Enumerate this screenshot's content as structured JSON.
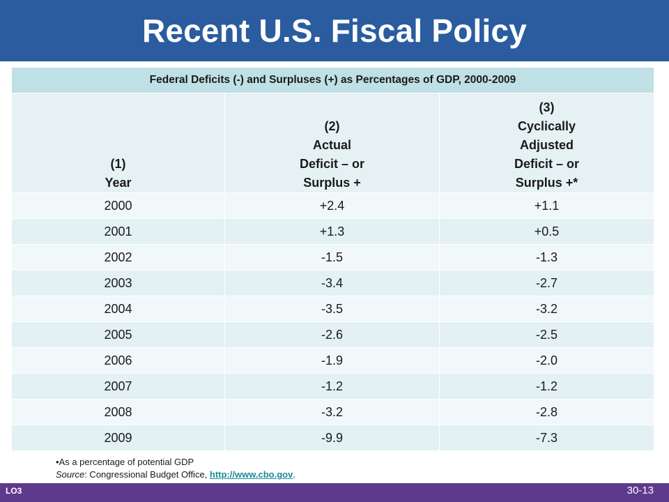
{
  "title": "Recent U.S. Fiscal Policy",
  "table": {
    "caption": "Federal Deficits (-) and Surpluses (+) as Percentages of GDP, 2000-2009",
    "headers": [
      [
        "(1)",
        "Year"
      ],
      [
        "(2)",
        "Actual",
        "Deficit – or",
        "Surplus +"
      ],
      [
        "(3)",
        "Cyclically",
        "Adjusted",
        "Deficit – or",
        "Surplus +*"
      ]
    ],
    "rows": [
      [
        "2000",
        "+2.4",
        "+1.1"
      ],
      [
        "2001",
        "+1.3",
        "+0.5"
      ],
      [
        "2002",
        "-1.5",
        "-1.3"
      ],
      [
        "2003",
        "-3.4",
        "-2.7"
      ],
      [
        "2004",
        "-3.5",
        "-3.2"
      ],
      [
        "2005",
        "-2.6",
        "-2.5"
      ],
      [
        "2006",
        "-1.9",
        "-2.0"
      ],
      [
        "2007",
        "-1.2",
        "-1.2"
      ],
      [
        "2008",
        "-3.2",
        "-2.8"
      ],
      [
        "2009",
        "-9.9",
        "-7.3"
      ]
    ]
  },
  "footnote": {
    "bullet": "•As a percentage of potential GDP",
    "source_label": "Source",
    "source_text": ": Congressional Budget Office, ",
    "link_text": "http://www.cbo.gov",
    "trailing": "."
  },
  "footer": {
    "lo_label": "LO3",
    "page_number": "30-13"
  },
  "colors": {
    "title_bar": "#2a5c9f",
    "caption_bg": "#bfe0e4",
    "header_bg": "#e6f1f4",
    "row_light": "#f1f8fa",
    "row_dark": "#e3f0f4",
    "bottom_bar": "#5e3a8c",
    "link": "#1b8a9b"
  }
}
